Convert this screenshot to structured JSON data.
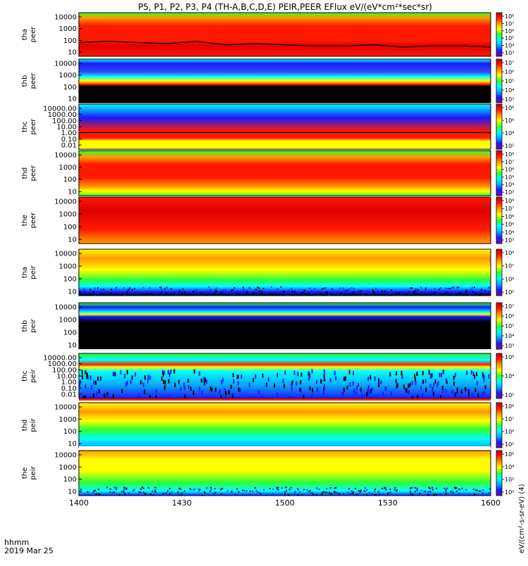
{
  "title": "P5, P1, P2, P3, P4 (TH-A,B,C,D,E) PEIR,PEER EFlux eV/(eV*cm²*sec*sr)",
  "x_axis": {
    "ticks": [
      "1400",
      "1430",
      "1500",
      "1530",
      "1600"
    ],
    "tick_values": [
      0,
      30,
      60,
      90,
      120
    ],
    "label_line1": "hhmm",
    "label_line2": "2019 Mar 25"
  },
  "colorbar_label": "eV/(cm²-s-sr-eV) (4)",
  "colors": {
    "background": "#ffffff",
    "frame": "#000000",
    "trace": "#000000",
    "colorscale": [
      "#7a0aa0",
      "#1a1aff",
      "#0aaaff",
      "#00ffff",
      "#30ff30",
      "#ffff00",
      "#ff9900",
      "#ff1a00",
      "#c00000"
    ]
  },
  "chart_data": {
    "type": "heatmap",
    "x_units": "minutes since 14:00 UT",
    "x_range": [
      0,
      120
    ],
    "panels": [
      {
        "probe": "tha",
        "species": "peer",
        "yticks": [
          "10000",
          "1000",
          "100",
          "10"
        ],
        "cb_ticks": [
          "10⁸",
          "10⁷",
          "10⁶",
          "10⁵",
          "10⁴",
          "10³"
        ],
        "trace_values": [
          1.9,
          2.0,
          1.9,
          1.8,
          2.0,
          1.7,
          1.8,
          1.7,
          1.6,
          1.6,
          1.7,
          1.5,
          1.6,
          1.6,
          1.5
        ]
      },
      {
        "probe": "thb",
        "species": "peer",
        "yticks": [
          "10000",
          "1000",
          "100",
          "10"
        ],
        "cb_ticks": [
          "10⁷",
          "10⁶",
          "10⁵",
          "10⁴",
          "10³"
        ]
      },
      {
        "probe": "thc",
        "species": "peer",
        "yticks": [
          "10000.00",
          "1000.00",
          "100.00",
          "10.00",
          "1.00",
          "0.10",
          "0.01"
        ],
        "cb_ticks": [
          "10⁸",
          "10⁶",
          "10⁴",
          "10²"
        ],
        "trace_values": [
          0.2,
          0.2,
          0.2,
          0.2,
          0.2,
          0.2,
          0.2,
          0.2,
          0.2,
          0.2,
          0.2,
          0.2,
          0.2,
          0.2,
          0.2
        ]
      },
      {
        "probe": "thd",
        "species": "peer",
        "yticks": [
          "10000",
          "1000",
          "100",
          "10"
        ],
        "cb_ticks": [
          "10⁸",
          "10⁷",
          "10⁶",
          "10⁵",
          "10⁴",
          "10³"
        ]
      },
      {
        "probe": "the",
        "species": "peer",
        "yticks": [
          "10000",
          "1000",
          "100",
          "10"
        ],
        "cb_ticks": [
          "10⁸",
          "10⁷",
          "10⁶",
          "10⁵",
          "10⁴",
          "10³"
        ]
      },
      {
        "probe": "tha",
        "species": "peir",
        "yticks": [
          "10000",
          "1000",
          "100",
          "10"
        ],
        "cb_ticks": [
          "10⁸",
          "10⁷",
          "10⁶",
          "10⁵"
        ]
      },
      {
        "probe": "thb",
        "species": "peir",
        "yticks": [
          "10000",
          "1000",
          "100",
          "10"
        ],
        "cb_ticks": [
          "10⁷",
          "10⁶",
          "10⁵",
          "10⁴",
          "10³"
        ]
      },
      {
        "probe": "thc",
        "species": "peir",
        "yticks": [
          "10000.00",
          "1000.00",
          "100.00",
          "10.00",
          "1.00",
          "0.10",
          "0.01"
        ],
        "cb_ticks": [
          "10⁶",
          "10⁴",
          "10²"
        ]
      },
      {
        "probe": "thd",
        "species": "peir",
        "yticks": [
          "10000",
          "1000",
          "100",
          "10"
        ],
        "cb_ticks": [
          "10⁸",
          "10⁷",
          "10⁶",
          "10⁵"
        ]
      },
      {
        "probe": "the",
        "species": "peir",
        "yticks": [
          "10000",
          "1000",
          "100",
          "10"
        ],
        "cb_ticks": [
          "10⁶",
          "10⁴",
          "10²",
          "10⁰"
        ]
      }
    ]
  }
}
